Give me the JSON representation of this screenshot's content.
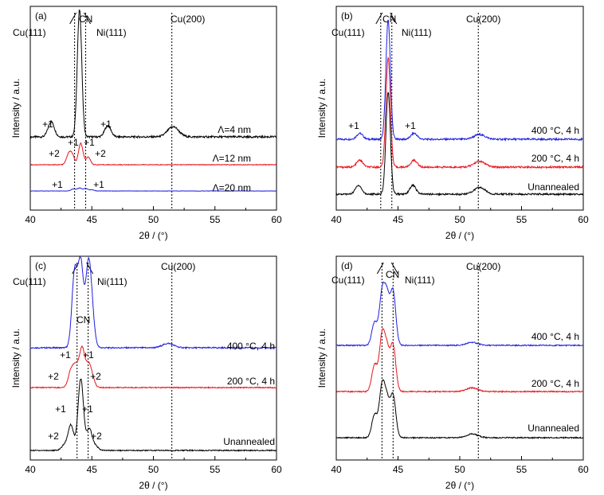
{
  "chart_data": [
    {
      "type": "line",
      "panel_label": "(a)",
      "xlabel": "2θ / (°)",
      "ylabel": "Intensity / a.u.",
      "xlim": [
        40,
        60
      ],
      "xticks": [
        40,
        45,
        50,
        55,
        60
      ],
      "ref_lines": [
        43.6,
        44.5,
        51.5
      ],
      "peak_labels": [
        "Cu(111)",
        "CN",
        "Ni(111)",
        "Cu(200)"
      ],
      "series": [
        {
          "name": "Λ=4 nm",
          "color": "#000000",
          "peaks": [
            [
              41.7,
              0.12
            ],
            [
              44.0,
              1.0
            ],
            [
              46.3,
              0.09
            ],
            [
              51.6,
              0.08
            ]
          ],
          "annotations": [
            "+1",
            "+1"
          ]
        },
        {
          "name": "Λ=12 nm",
          "color": "#e8141c",
          "peaks": [
            [
              43.1,
              0.2
            ],
            [
              43.4,
              0.2
            ],
            [
              44.1,
              0.45
            ],
            [
              44.7,
              0.16
            ]
          ],
          "annotations": [
            "+2",
            "+1",
            "+1",
            "+2"
          ]
        },
        {
          "name": "Λ=20 nm",
          "color": "#1f1fe0",
          "peaks": [
            [
              43.5,
              0.1
            ],
            [
              44.0,
              0.14
            ],
            [
              44.5,
              0.12
            ],
            [
              45.0,
              0.06
            ]
          ],
          "annotations": [
            "+1",
            "+1"
          ]
        }
      ]
    },
    {
      "type": "line",
      "panel_label": "(b)",
      "xlabel": "2θ / (°)",
      "ylabel": "Intensity / a.u.",
      "xlim": [
        40,
        60
      ],
      "xticks": [
        40,
        45,
        50,
        55,
        60
      ],
      "ref_lines": [
        43.6,
        44.5,
        51.5
      ],
      "peak_labels": [
        "Cu(111)",
        "CN",
        "Ni(111)",
        "Cu(200)"
      ],
      "series": [
        {
          "name": "400 °C, 4 h",
          "color": "#1f1fe0",
          "peaks": [
            [
              41.9,
              0.05
            ],
            [
              44.2,
              1.0
            ],
            [
              46.3,
              0.05
            ],
            [
              51.6,
              0.04
            ]
          ],
          "annotations": [
            "+1",
            "+1"
          ]
        },
        {
          "name": "200 °C, 4 h",
          "color": "#e8141c",
          "peaks": [
            [
              41.9,
              0.06
            ],
            [
              44.2,
              0.95
            ],
            [
              46.3,
              0.06
            ],
            [
              51.6,
              0.05
            ]
          ],
          "annotations": []
        },
        {
          "name": "Unannealed",
          "color": "#000000",
          "peaks": [
            [
              41.8,
              0.08
            ],
            [
              44.2,
              0.92
            ],
            [
              46.2,
              0.08
            ],
            [
              51.6,
              0.06
            ]
          ],
          "annotations": []
        }
      ]
    },
    {
      "type": "line",
      "panel_label": "(c)",
      "xlabel": "2θ / (°)",
      "ylabel": "Intensity / a.u.",
      "xlim": [
        40,
        60
      ],
      "xticks": [
        40,
        45,
        50,
        55,
        60
      ],
      "ref_lines": [
        43.8,
        44.7,
        51.5
      ],
      "peak_labels": [
        "Cu(111)",
        "Ni(111)",
        "Cu(200)",
        "CN"
      ],
      "series": [
        {
          "name": "400 °C, 4 h",
          "color": "#1f1fe0",
          "peaks": [
            [
              43.6,
              0.85
            ],
            [
              44.1,
              0.95
            ],
            [
              44.7,
              0.85
            ],
            [
              45.0,
              0.35
            ],
            [
              51.2,
              0.05
            ]
          ],
          "annotations": []
        },
        {
          "name": "200 °C, 4 h",
          "color": "#e8141c",
          "peaks": [
            [
              43.3,
              0.25
            ],
            [
              43.7,
              0.3
            ],
            [
              44.2,
              0.6
            ],
            [
              44.7,
              0.3
            ],
            [
              45.0,
              0.15
            ]
          ],
          "annotations": [
            "+1",
            "+1",
            "+2",
            "+2"
          ]
        },
        {
          "name": "Unannealed",
          "color": "#000000",
          "peaks": [
            [
              42.8,
              0.08
            ],
            [
              43.3,
              0.35
            ],
            [
              44.1,
              1.0
            ],
            [
              44.8,
              0.3
            ],
            [
              45.3,
              0.06
            ]
          ],
          "annotations": [
            "+1",
            "+1",
            "+2",
            "+2"
          ]
        }
      ]
    },
    {
      "type": "line",
      "panel_label": "(d)",
      "xlabel": "2θ / (°)",
      "ylabel": "Intensity / a.u.",
      "xlim": [
        40,
        60
      ],
      "xticks": [
        40,
        45,
        50,
        55,
        60
      ],
      "ref_lines": [
        43.7,
        44.6,
        51.5
      ],
      "peak_labels": [
        "Cu(111)",
        "CN",
        "Ni(111)",
        "Cu(200)"
      ],
      "series": [
        {
          "name": "400 °C, 4 h",
          "color": "#1f1fe0",
          "peaks": [
            [
              43.1,
              0.3
            ],
            [
              43.7,
              0.65
            ],
            [
              44.1,
              0.6
            ],
            [
              44.6,
              0.7
            ],
            [
              51.0,
              0.04
            ]
          ],
          "annotations": []
        },
        {
          "name": "200 °C, 4 h",
          "color": "#e8141c",
          "peaks": [
            [
              43.1,
              0.35
            ],
            [
              43.7,
              0.7
            ],
            [
              44.1,
              0.5
            ],
            [
              44.6,
              0.6
            ],
            [
              51.0,
              0.05
            ]
          ],
          "annotations": []
        },
        {
          "name": "Unannealed",
          "color": "#000000",
          "peaks": [
            [
              43.1,
              0.3
            ],
            [
              43.7,
              0.65
            ],
            [
              44.1,
              0.45
            ],
            [
              44.6,
              0.55
            ],
            [
              51.0,
              0.05
            ]
          ],
          "annotations": []
        }
      ]
    }
  ]
}
